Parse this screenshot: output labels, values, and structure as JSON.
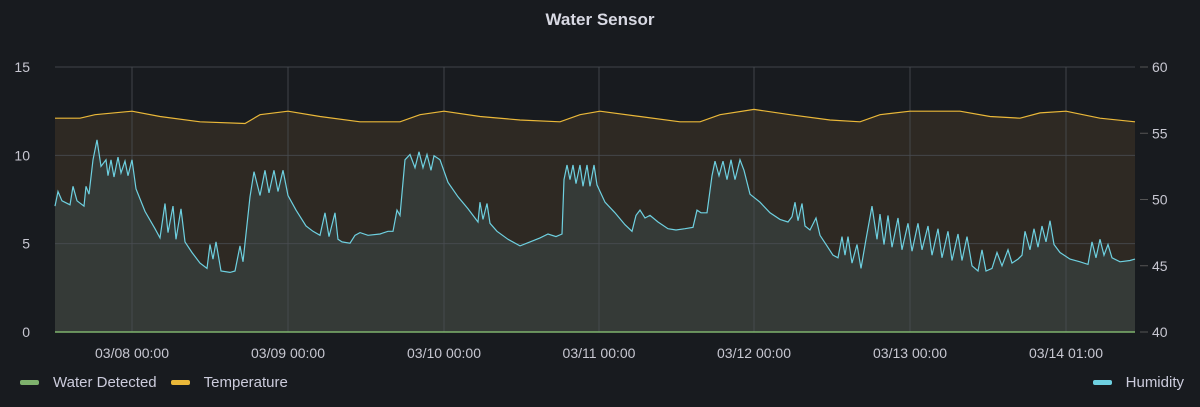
{
  "panel": {
    "title": "Water Sensor"
  },
  "colors": {
    "background": "#181b1f",
    "grid": "#4a4d52",
    "water_detected": "#7eb26d",
    "temperature": "#eab839",
    "humidity": "#6ed0e0",
    "temperature_fill": "#2e2923",
    "humidity_fill": "#353a37"
  },
  "legend": {
    "water_detected": "Water Detected",
    "temperature": "Temperature",
    "humidity": "Humidity"
  },
  "chart_data": {
    "type": "area",
    "title": "Water Sensor",
    "x_ticks": [
      "03/08 00:00",
      "03/09 00:00",
      "03/10 00:00",
      "03/11 00:00",
      "03/12 00:00",
      "03/13 00:00",
      "03/14 01:00"
    ],
    "left_axis": {
      "ticks": [
        0,
        5,
        10,
        15
      ],
      "range": [
        0,
        15
      ]
    },
    "right_axis": {
      "ticks": [
        40,
        45,
        50,
        55,
        60
      ],
      "range": [
        40,
        60
      ]
    },
    "grid": true,
    "legend_position": "bottom",
    "series": [
      {
        "name": "Water Detected",
        "axis": "left",
        "color": "#7eb26d",
        "values": [
          0,
          0,
          0,
          0,
          0,
          0,
          0,
          0
        ]
      },
      {
        "name": "Temperature",
        "axis": "left",
        "color": "#eab839",
        "points": [
          [
            55,
            12.1
          ],
          [
            80,
            12.1
          ],
          [
            95,
            12.3
          ],
          [
            132,
            12.5
          ],
          [
            160,
            12.2
          ],
          [
            200,
            11.9
          ],
          [
            245,
            11.8
          ],
          [
            260,
            12.3
          ],
          [
            288,
            12.5
          ],
          [
            320,
            12.2
          ],
          [
            360,
            11.9
          ],
          [
            400,
            11.9
          ],
          [
            420,
            12.3
          ],
          [
            444,
            12.5
          ],
          [
            480,
            12.2
          ],
          [
            520,
            12.0
          ],
          [
            560,
            11.9
          ],
          [
            580,
            12.3
          ],
          [
            600,
            12.5
          ],
          [
            640,
            12.2
          ],
          [
            680,
            11.9
          ],
          [
            700,
            11.9
          ],
          [
            720,
            12.3
          ],
          [
            754,
            12.6
          ],
          [
            790,
            12.3
          ],
          [
            830,
            12.0
          ],
          [
            860,
            11.9
          ],
          [
            880,
            12.3
          ],
          [
            910,
            12.5
          ],
          [
            960,
            12.5
          ],
          [
            990,
            12.2
          ],
          [
            1020,
            12.1
          ],
          [
            1040,
            12.4
          ],
          [
            1066,
            12.5
          ],
          [
            1100,
            12.1
          ],
          [
            1135,
            11.9
          ]
        ]
      },
      {
        "name": "Humidity",
        "axis": "right",
        "color": "#6ed0e0",
        "points": [
          [
            55,
            49.5
          ],
          [
            58,
            50.6
          ],
          [
            62,
            49.9
          ],
          [
            70,
            49.6
          ],
          [
            73,
            51.0
          ],
          [
            77,
            49.9
          ],
          [
            84,
            49.5
          ],
          [
            86,
            51.0
          ],
          [
            89,
            50.4
          ],
          [
            93,
            53.0
          ],
          [
            97,
            54.5
          ],
          [
            101,
            52.5
          ],
          [
            106,
            53.0
          ],
          [
            108,
            51.8
          ],
          [
            111,
            53.0
          ],
          [
            114,
            51.7
          ],
          [
            118,
            53.2
          ],
          [
            121,
            52.0
          ],
          [
            125,
            52.9
          ],
          [
            128,
            51.8
          ],
          [
            132,
            53.0
          ],
          [
            136,
            50.8
          ],
          [
            145,
            49.1
          ],
          [
            155,
            47.8
          ],
          [
            160,
            47.1
          ],
          [
            165,
            49.7
          ],
          [
            168,
            47.5
          ],
          [
            173,
            49.5
          ],
          [
            176,
            47.0
          ],
          [
            181,
            49.3
          ],
          [
            185,
            46.8
          ],
          [
            192,
            46.0
          ],
          [
            200,
            45.2
          ],
          [
            207,
            44.8
          ],
          [
            210,
            46.6
          ],
          [
            213,
            45.5
          ],
          [
            216,
            46.8
          ],
          [
            221,
            44.6
          ],
          [
            230,
            44.5
          ],
          [
            235,
            44.6
          ],
          [
            240,
            46.5
          ],
          [
            243,
            45.3
          ],
          [
            250,
            50.2
          ],
          [
            254,
            52.1
          ],
          [
            260,
            50.3
          ],
          [
            265,
            52.2
          ],
          [
            269,
            50.5
          ],
          [
            274,
            52.2
          ],
          [
            278,
            50.6
          ],
          [
            283,
            52.2
          ],
          [
            288,
            50.3
          ],
          [
            296,
            49.2
          ],
          [
            306,
            48.0
          ],
          [
            313,
            47.6
          ],
          [
            320,
            47.3
          ],
          [
            325,
            49.0
          ],
          [
            329,
            47.2
          ],
          [
            335,
            49.0
          ],
          [
            338,
            47.0
          ],
          [
            342,
            46.8
          ],
          [
            350,
            46.7
          ],
          [
            355,
            47.3
          ],
          [
            360,
            47.5
          ],
          [
            368,
            47.3
          ],
          [
            380,
            47.4
          ],
          [
            388,
            47.6
          ],
          [
            393,
            47.6
          ],
          [
            397,
            49.2
          ],
          [
            400,
            48.8
          ],
          [
            405,
            53.0
          ],
          [
            410,
            53.4
          ],
          [
            415,
            52.4
          ],
          [
            419,
            53.6
          ],
          [
            423,
            52.4
          ],
          [
            427,
            53.4
          ],
          [
            431,
            52.2
          ],
          [
            434,
            53.3
          ],
          [
            440,
            53.0
          ],
          [
            448,
            51.3
          ],
          [
            458,
            50.2
          ],
          [
            468,
            49.3
          ],
          [
            478,
            48.3
          ],
          [
            480,
            49.8
          ],
          [
            483,
            48.5
          ],
          [
            487,
            49.7
          ],
          [
            490,
            48.2
          ],
          [
            497,
            47.6
          ],
          [
            508,
            47.0
          ],
          [
            520,
            46.5
          ],
          [
            530,
            46.8
          ],
          [
            540,
            47.1
          ],
          [
            548,
            47.4
          ],
          [
            556,
            47.2
          ],
          [
            562,
            47.4
          ],
          [
            564,
            51.5
          ],
          [
            567,
            52.6
          ],
          [
            570,
            51.5
          ],
          [
            573,
            52.6
          ],
          [
            576,
            51.2
          ],
          [
            580,
            52.6
          ],
          [
            583,
            51.0
          ],
          [
            587,
            52.6
          ],
          [
            590,
            51.0
          ],
          [
            594,
            52.6
          ],
          [
            597,
            51.1
          ],
          [
            605,
            49.8
          ],
          [
            615,
            49.0
          ],
          [
            625,
            48.1
          ],
          [
            632,
            47.6
          ],
          [
            636,
            48.8
          ],
          [
            640,
            49.2
          ],
          [
            645,
            48.6
          ],
          [
            650,
            48.8
          ],
          [
            658,
            48.3
          ],
          [
            668,
            47.8
          ],
          [
            676,
            47.7
          ],
          [
            685,
            47.8
          ],
          [
            693,
            47.9
          ],
          [
            697,
            49.2
          ],
          [
            701,
            49.0
          ],
          [
            707,
            49.0
          ],
          [
            712,
            51.8
          ],
          [
            715,
            52.9
          ],
          [
            719,
            51.8
          ],
          [
            723,
            52.9
          ],
          [
            727,
            51.5
          ],
          [
            731,
            53.0
          ],
          [
            735,
            51.5
          ],
          [
            740,
            53.0
          ],
          [
            744,
            52.2
          ],
          [
            750,
            50.4
          ],
          [
            760,
            49.8
          ],
          [
            770,
            49.0
          ],
          [
            780,
            48.5
          ],
          [
            788,
            48.3
          ],
          [
            792,
            48.7
          ],
          [
            795,
            49.8
          ],
          [
            798,
            48.4
          ],
          [
            802,
            49.7
          ],
          [
            805,
            48.0
          ],
          [
            810,
            47.7
          ],
          [
            816,
            48.6
          ],
          [
            820,
            47.3
          ],
          [
            827,
            46.5
          ],
          [
            833,
            45.8
          ],
          [
            838,
            45.6
          ],
          [
            842,
            47.2
          ],
          [
            845,
            45.8
          ],
          [
            848,
            47.2
          ],
          [
            852,
            45.2
          ],
          [
            857,
            46.6
          ],
          [
            861,
            44.8
          ],
          [
            866,
            47.0
          ],
          [
            872,
            49.5
          ],
          [
            877,
            47.0
          ],
          [
            880,
            48.9
          ],
          [
            884,
            46.6
          ],
          [
            888,
            48.8
          ],
          [
            892,
            46.4
          ],
          [
            898,
            48.6
          ],
          [
            902,
            46.2
          ],
          [
            908,
            48.2
          ],
          [
            912,
            46.1
          ],
          [
            918,
            48.2
          ],
          [
            922,
            46.2
          ],
          [
            928,
            48.0
          ],
          [
            932,
            45.8
          ],
          [
            938,
            47.8
          ],
          [
            942,
            45.6
          ],
          [
            948,
            47.6
          ],
          [
            952,
            45.4
          ],
          [
            958,
            47.4
          ],
          [
            962,
            45.4
          ],
          [
            967,
            47.2
          ],
          [
            972,
            45.0
          ],
          [
            978,
            44.6
          ],
          [
            982,
            46.2
          ],
          [
            986,
            44.6
          ],
          [
            992,
            44.8
          ],
          [
            997,
            46.0
          ],
          [
            1002,
            45.0
          ],
          [
            1008,
            46.2
          ],
          [
            1012,
            45.2
          ],
          [
            1018,
            45.5
          ],
          [
            1022,
            45.8
          ],
          [
            1025,
            47.6
          ],
          [
            1030,
            46.2
          ],
          [
            1034,
            47.8
          ],
          [
            1038,
            46.4
          ],
          [
            1042,
            48.0
          ],
          [
            1046,
            46.8
          ],
          [
            1050,
            48.4
          ],
          [
            1054,
            46.6
          ],
          [
            1060,
            46.0
          ],
          [
            1070,
            45.5
          ],
          [
            1080,
            45.3
          ],
          [
            1088,
            45.1
          ],
          [
            1092,
            46.8
          ],
          [
            1096,
            45.6
          ],
          [
            1100,
            47.0
          ],
          [
            1104,
            45.8
          ],
          [
            1108,
            46.6
          ],
          [
            1112,
            45.6
          ],
          [
            1120,
            45.3
          ],
          [
            1130,
            45.4
          ],
          [
            1135,
            45.5
          ]
        ]
      }
    ]
  }
}
